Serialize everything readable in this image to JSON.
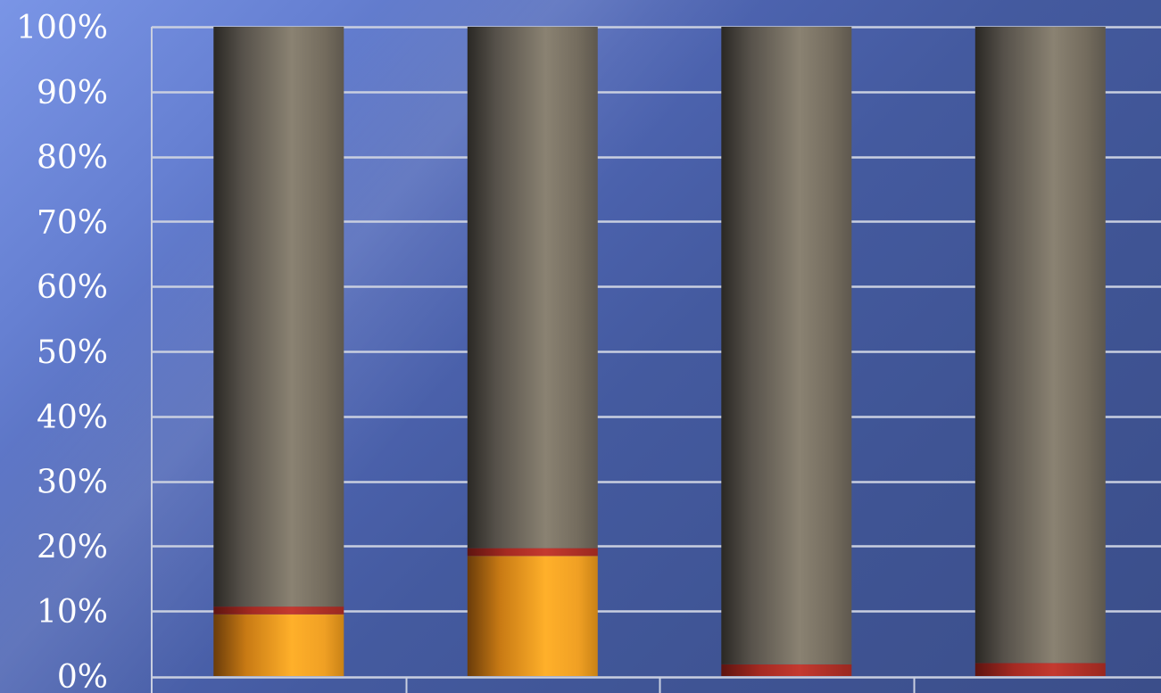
{
  "chart_data": {
    "type": "bar",
    "stacked": true,
    "percent_stacked": true,
    "title": "",
    "xlabel": "",
    "ylabel": "",
    "categories": [
      "",
      "",
      "",
      ""
    ],
    "ylim": [
      0,
      100
    ],
    "yticks": [
      "0%",
      "10%",
      "20%",
      "30%",
      "40%",
      "50%",
      "60%",
      "70%",
      "80%",
      "90%",
      "100%"
    ],
    "grid": true,
    "legend": "none",
    "series": [
      {
        "values": [
          9.5,
          18.5,
          0,
          0
        ],
        "color": "#f5a623"
      },
      {
        "values": [
          1.2,
          1.2,
          1.8,
          2.0
        ],
        "color": "#b0302a"
      },
      {
        "values": [
          89.3,
          80.3,
          98.2,
          98.0
        ],
        "color": "#6f685d"
      }
    ]
  }
}
